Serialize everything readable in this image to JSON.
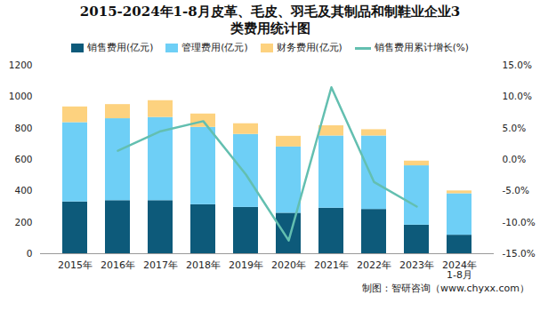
{
  "chart_data": {
    "type": "bar",
    "title": "2015-2024年1-8月皮革、毛皮、羽毛及其制品和制鞋业企业3类费用统计图",
    "source": "制图：智研咨询（www.chyxx.com）",
    "categories": [
      "2015年",
      "2016年",
      "2017年",
      "2018年",
      "2019年",
      "2020年",
      "2021年",
      "2022年",
      "2023年",
      "2024年\n1-8月"
    ],
    "series": [
      {
        "name": "销售费用(亿元)",
        "color": "#0d5a7a",
        "values": [
          330,
          338,
          338,
          312,
          295,
          258,
          290,
          282,
          182,
          118
        ]
      },
      {
        "name": "管理费用(亿元)",
        "color": "#6ecff6",
        "values": [
          505,
          522,
          530,
          493,
          465,
          422,
          460,
          468,
          378,
          264
        ]
      },
      {
        "name": "财务费用(亿元)",
        "color": "#fdd27f",
        "values": [
          100,
          90,
          107,
          85,
          68,
          68,
          65,
          40,
          30,
          18
        ]
      },
      {
        "name": "销售费用累计增长(%)",
        "color": "#63bfb0",
        "type": "line",
        "axis": "y2",
        "values": [
          null,
          1.4,
          4.5,
          6.1,
          -2.4,
          -12.9,
          11.5,
          -3.6,
          -7.5,
          null
        ]
      }
    ],
    "stacked": true,
    "ylim": [
      0,
      1200
    ],
    "yticks": [
      0,
      200,
      400,
      600,
      800,
      1000,
      1200
    ],
    "y2lim": [
      -15,
      15
    ],
    "y2ticks": [
      {
        "value": -15,
        "label": "-15.0%"
      },
      {
        "value": -10,
        "label": "-10.0%"
      },
      {
        "value": -5,
        "label": "-5.0%"
      },
      {
        "value": 0,
        "label": "0.0%"
      },
      {
        "value": 5,
        "label": "5.0%"
      },
      {
        "value": 10,
        "label": "10.0%"
      },
      {
        "value": 15,
        "label": "15.0%"
      }
    ],
    "grid": false,
    "legend": "top"
  }
}
